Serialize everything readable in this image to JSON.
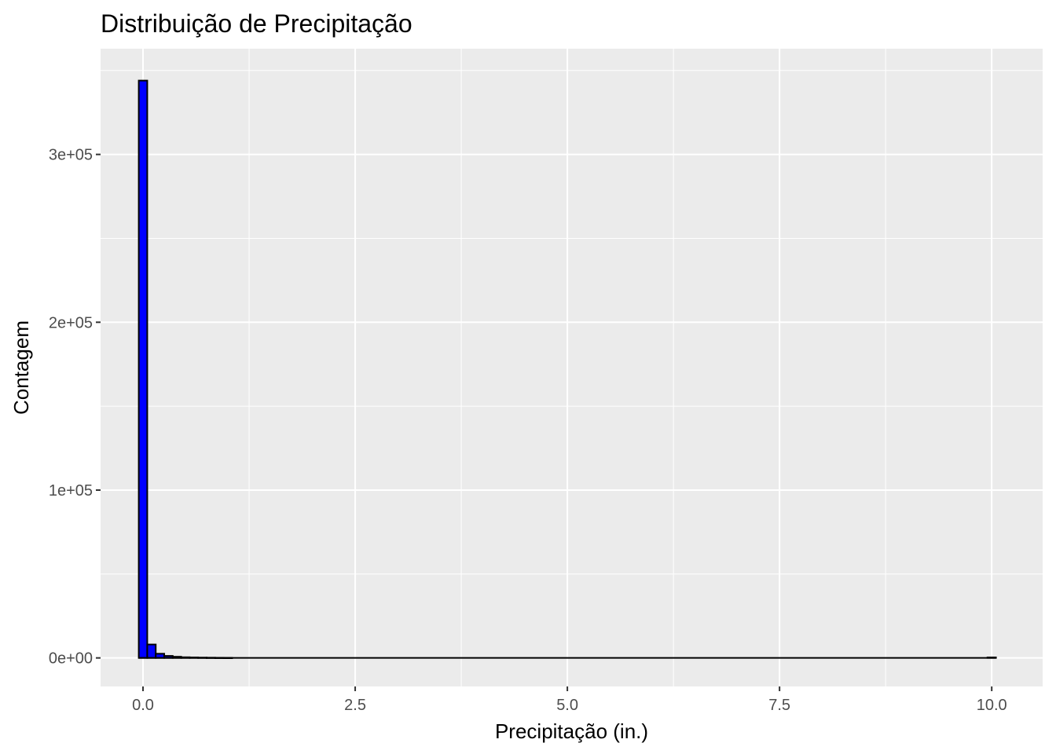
{
  "chart_data": {
    "type": "bar",
    "title": "Distribuição de Precipitação",
    "xlabel": "Precipitação (in.)",
    "ylabel": "Contagem",
    "xlim": [
      -0.5,
      10.6
    ],
    "ylim": [
      -17000,
      363000
    ],
    "x_ticks": [
      0.0,
      2.5,
      5.0,
      7.5,
      10.0
    ],
    "x_tick_labels": [
      "0.0",
      "2.5",
      "5.0",
      "7.5",
      "10.0"
    ],
    "y_ticks": [
      0,
      100000,
      200000,
      300000
    ],
    "y_tick_labels": [
      "0e+00",
      "1e+05",
      "2e+05",
      "3e+05"
    ],
    "grid": true,
    "bin_width": 0.1,
    "bins": [
      {
        "x": 0.0,
        "count": 344000
      },
      {
        "x": 0.1,
        "count": 8000
      },
      {
        "x": 0.2,
        "count": 2500
      },
      {
        "x": 0.3,
        "count": 1200
      },
      {
        "x": 0.4,
        "count": 700
      },
      {
        "x": 0.5,
        "count": 400
      },
      {
        "x": 0.6,
        "count": 300
      },
      {
        "x": 0.7,
        "count": 200
      },
      {
        "x": 0.8,
        "count": 150
      },
      {
        "x": 0.9,
        "count": 100
      },
      {
        "x": 1.0,
        "count": 80
      },
      {
        "x": 10.0,
        "count": 300
      }
    ],
    "fill_color": "#0000ff",
    "border_color": "#000000",
    "panel_color": "#ebebeb",
    "grid_color": "#ffffff"
  }
}
